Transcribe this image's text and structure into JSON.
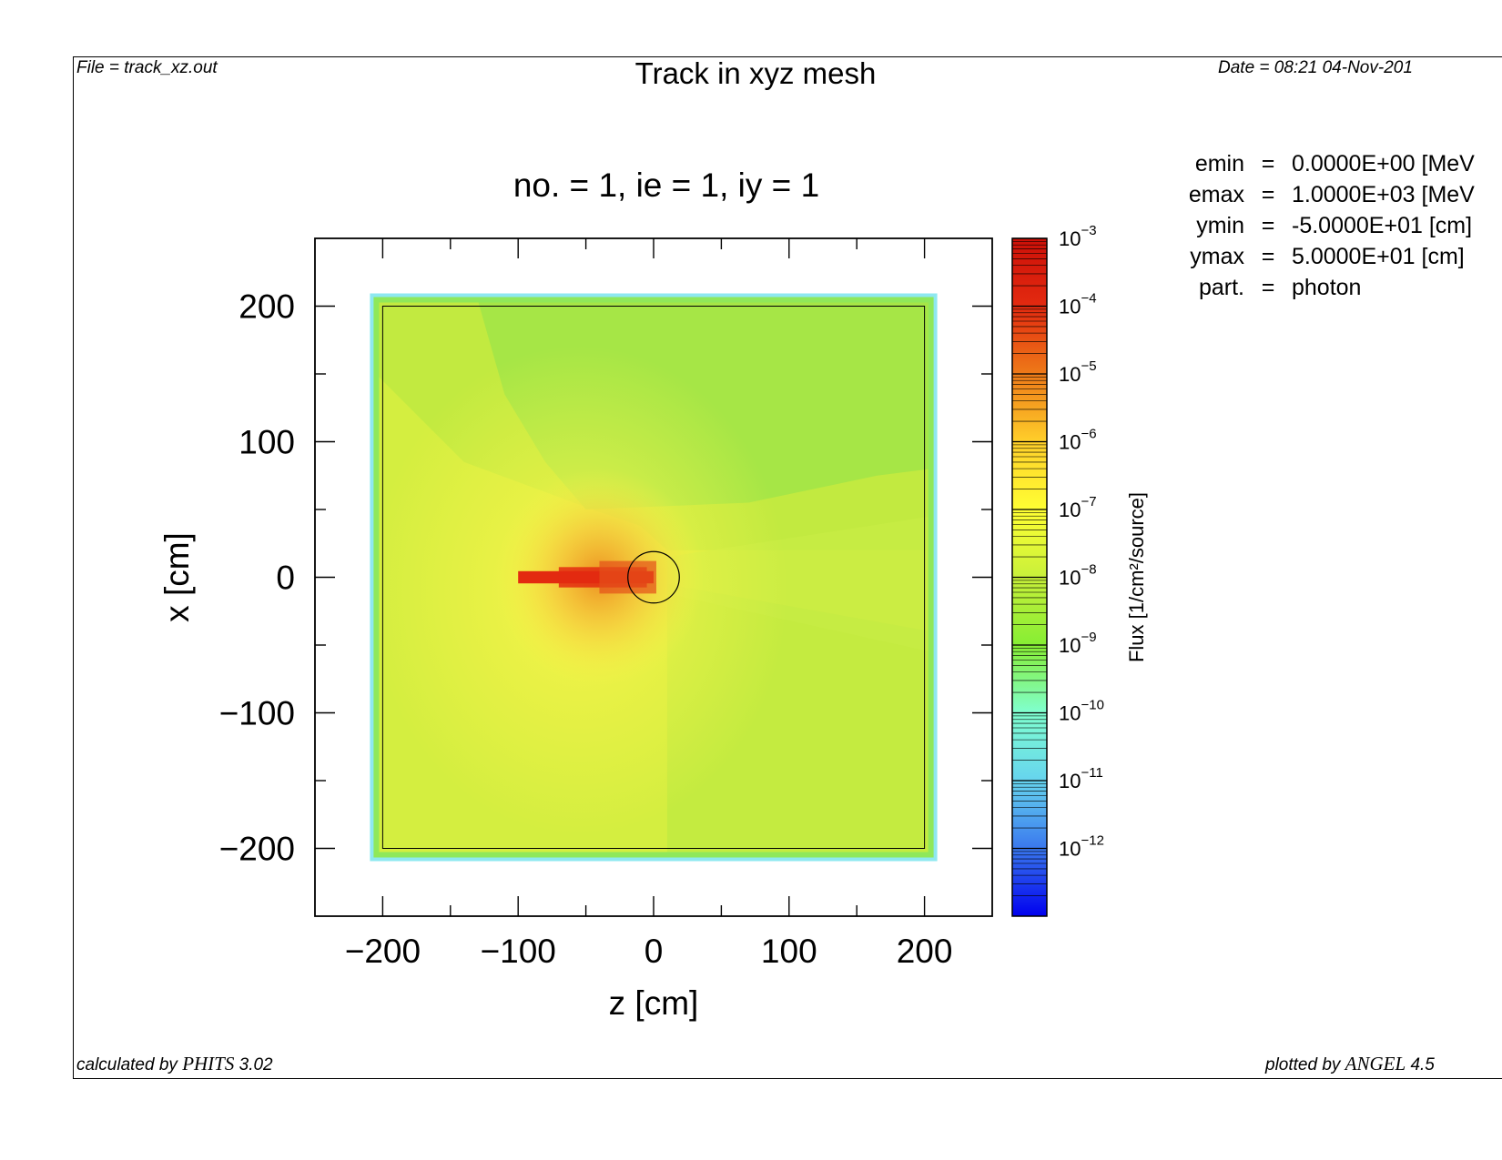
{
  "header": {
    "file_label": "File = track_xz.out",
    "title": "Track in xyz mesh",
    "date_label": "Date = 08:21 04-Nov-201"
  },
  "footer": {
    "calc_prefix": "calculated by ",
    "calc_code": "PHITS",
    "calc_version": " 3.02",
    "plot_prefix": "plotted by ",
    "plot_code": "ANGEL",
    "plot_version": " 4.5"
  },
  "params": [
    {
      "name": "emin",
      "eq": "=",
      "value": "0.0000E+00 [MeV"
    },
    {
      "name": "emax",
      "eq": "=",
      "value": "1.0000E+03 [MeV"
    },
    {
      "name": "ymin",
      "eq": "=",
      "value": "-5.0000E+01 [cm]"
    },
    {
      "name": "ymax",
      "eq": "=",
      "value": "5.0000E+01 [cm]"
    },
    {
      "name": "part.",
      "eq": "=",
      "value": "photon"
    }
  ],
  "chart_data": {
    "type": "heatmap",
    "subtitle": "no. =  1,  ie =  1,  iy =  1",
    "xlabel": "z [cm]",
    "ylabel": "x [cm]",
    "xlim": [
      -250,
      250
    ],
    "ylim": [
      -250,
      250
    ],
    "xticks": [
      -200,
      -100,
      0,
      100,
      200
    ],
    "yticks": [
      -200,
      -100,
      0,
      100,
      200
    ],
    "xtick_labels": [
      "−200",
      "−100",
      "0",
      "100",
      "200"
    ],
    "ytick_labels": [
      "−200",
      "−100",
      "0",
      "100",
      "200"
    ],
    "mesh_region": {
      "z": [
        -200,
        200
      ],
      "x": [
        -200,
        200
      ]
    },
    "beam": {
      "z_start": -100,
      "z_end": 0,
      "x": 0,
      "color": "#e32a10"
    },
    "target_circle": {
      "center_z": 0,
      "center_x": 0,
      "radius": 19
    },
    "colorbar": {
      "label": "Flux [1/cm²/source]",
      "scale": "log",
      "range": [
        1e-13,
        0.001
      ],
      "tick_exponents": [
        -3,
        -4,
        -5,
        -6,
        -7,
        -8,
        -9,
        -10,
        -11,
        -12
      ],
      "tick_base": "10",
      "tick_labels": [
        "−3",
        "−4",
        "−5",
        "−6",
        "−7",
        "−8",
        "−9",
        "−10",
        "−11",
        "−12"
      ],
      "colors": [
        "#0000ee",
        "#3a78ee",
        "#66d4ee",
        "#80ffd0",
        "#86ee34",
        "#c8f03a",
        "#ffff33",
        "#ffcf2a",
        "#ee7a18",
        "#e32a10",
        "#cc1008"
      ]
    },
    "field_colors": {
      "background": "#d4ee40",
      "lower_right": "#c2ea40",
      "upper_cone": "#a6e646",
      "near_source": "#fbf44a",
      "source_glow": "#ec8a1e",
      "border": "#8fe85a",
      "edge_pixels": "#8ee8f0"
    }
  }
}
